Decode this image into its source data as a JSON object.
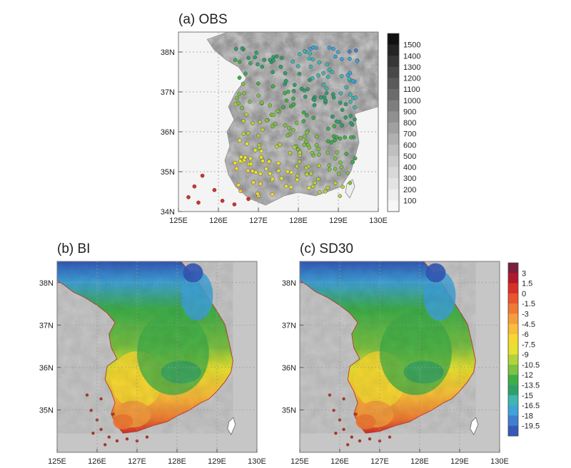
{
  "panels": {
    "a": {
      "title": "(a) OBS"
    },
    "b": {
      "title": "(b) BI"
    },
    "c": {
      "title": "(c) SD30"
    }
  },
  "axes": {
    "lon_ticks": [
      "125E",
      "126E",
      "127E",
      "128E",
      "129E",
      "130E"
    ],
    "lat_ticks_a": [
      "34N",
      "35N",
      "36N",
      "37N",
      "38N"
    ],
    "lat_ticks_bc": [
      "35N",
      "36N",
      "37N",
      "38N"
    ],
    "lon_range": [
      125,
      130
    ],
    "lat_range_a": [
      34,
      38.5
    ],
    "lat_range_bc": [
      34,
      38.5
    ]
  },
  "elevation_colorbar": {
    "labels": [
      "1500",
      "1400",
      "1300",
      "1200",
      "1100",
      "1000",
      "900",
      "800",
      "700",
      "600",
      "500",
      "400",
      "300",
      "200",
      "100"
    ],
    "colors": [
      "#111111",
      "#242424",
      "#363636",
      "#484848",
      "#5a5a5a",
      "#6c6c6c",
      "#7e7e7e",
      "#909090",
      "#a0a0a0",
      "#b0b0b0",
      "#bfbfbf",
      "#cccccc",
      "#d8d8d8",
      "#e3e3e3",
      "#eeeeee",
      "#f7f7f7"
    ]
  },
  "temp_colorbar": {
    "labels": [
      "3",
      "1.5",
      "0",
      "-1.5",
      "-3",
      "-4.5",
      "-6",
      "-7.5",
      "-9",
      "-10.5",
      "-12",
      "-13.5",
      "-15",
      "-16.5",
      "-18",
      "-19.5"
    ],
    "colors": [
      "#7a1f3d",
      "#b2182b",
      "#d73027",
      "#e8552f",
      "#f07a35",
      "#f59d3d",
      "#f8bd3a",
      "#f6d832",
      "#e6e22f",
      "#b3d33a",
      "#7cc243",
      "#3fae49",
      "#2f9f6a",
      "#3fb6b0",
      "#3fa2d8",
      "#3f7fd0",
      "#3459b8"
    ]
  },
  "colors": {
    "sea": "#c6c6c6",
    "frame": "#777777",
    "grid": "#9a9a9a"
  }
}
